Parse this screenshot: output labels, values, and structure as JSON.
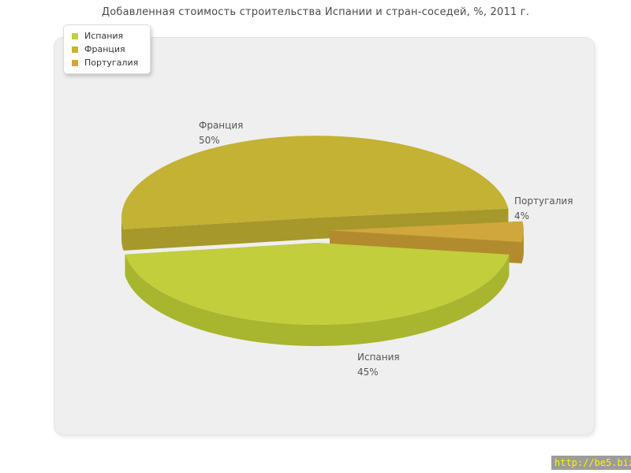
{
  "page": {
    "watermark": "http://be5.biz/"
  },
  "chart_data": {
    "type": "pie",
    "style": "3d-exploded-pie",
    "title": "Добавленная стоимость строительства Испании и стран-соседей, %, 2011 г.",
    "unit": "%",
    "slices": [
      {
        "label": "Испания",
        "value": 45,
        "pct_label": "45%",
        "color": "#c2ce3b",
        "side_color": "#a8b52f"
      },
      {
        "label": "Франция",
        "value": 50,
        "pct_label": "50%",
        "color": "#c3b233",
        "side_color": "#a6982b"
      },
      {
        "label": "Португалия",
        "value": 4,
        "pct_label": "4%",
        "color": "#d0a73c",
        "side_color": "#b18b2e"
      }
    ],
    "legend": {
      "position": "top-left"
    },
    "start_angle_deg": -8.2,
    "angular_order": [
      2,
      1,
      0
    ],
    "z_order": [
      1,
      2,
      0
    ]
  }
}
